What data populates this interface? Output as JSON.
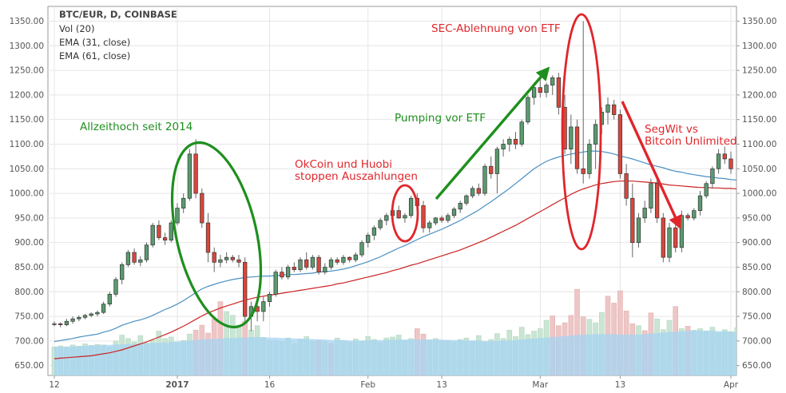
{
  "chart_data": {
    "type": "candlestick",
    "title": "BTC/EUR, D, COINBASE",
    "indicators": [
      "Vol (20)",
      "EMA (31, close)",
      "EMA (61, close)"
    ],
    "ylim": [
      630,
      1380
    ],
    "y_ticks": [
      650,
      700,
      750,
      800,
      850,
      900,
      950,
      1000,
      1050,
      1100,
      1150,
      1200,
      1250,
      1300,
      1350
    ],
    "y_tick_labels": [
      "650.00",
      "700.00",
      "750.00",
      "800.00",
      "850.00",
      "900.00",
      "950.00",
      "1000.00",
      "1050.00",
      "1100.00",
      "1150.00",
      "1200.00",
      "1250.00",
      "1300.00",
      "1350.00"
    ],
    "x_ticks": [
      {
        "day": 0,
        "label": "12"
      },
      {
        "day": 20,
        "label": "2017"
      },
      {
        "day": 35,
        "label": "16"
      },
      {
        "day": 51,
        "label": "Feb"
      },
      {
        "day": 63,
        "label": "13"
      },
      {
        "day": 79,
        "label": "Mar"
      },
      {
        "day": 92,
        "label": "13"
      },
      {
        "day": 110,
        "label": "Apr"
      }
    ],
    "candles": [
      [
        735,
        740,
        730,
        735
      ],
      [
        735,
        738,
        728,
        733
      ],
      [
        733,
        745,
        730,
        740
      ],
      [
        740,
        750,
        735,
        745
      ],
      [
        745,
        752,
        740,
        748
      ],
      [
        748,
        755,
        744,
        752
      ],
      [
        752,
        758,
        748,
        755
      ],
      [
        755,
        762,
        750,
        758
      ],
      [
        758,
        780,
        755,
        775
      ],
      [
        775,
        800,
        770,
        795
      ],
      [
        795,
        830,
        790,
        825
      ],
      [
        825,
        860,
        815,
        855
      ],
      [
        855,
        885,
        850,
        880
      ],
      [
        880,
        888,
        855,
        860
      ],
      [
        860,
        872,
        852,
        865
      ],
      [
        865,
        900,
        860,
        895
      ],
      [
        895,
        940,
        890,
        935
      ],
      [
        935,
        945,
        905,
        910
      ],
      [
        910,
        920,
        895,
        905
      ],
      [
        905,
        945,
        900,
        940
      ],
      [
        940,
        980,
        935,
        970
      ],
      [
        970,
        1000,
        960,
        990
      ],
      [
        990,
        1090,
        985,
        1080
      ],
      [
        1080,
        1110,
        990,
        1000
      ],
      [
        1000,
        1010,
        930,
        940
      ],
      [
        940,
        960,
        860,
        880
      ],
      [
        880,
        890,
        840,
        860
      ],
      [
        860,
        875,
        850,
        865
      ],
      [
        865,
        880,
        858,
        870
      ],
      [
        870,
        875,
        860,
        865
      ],
      [
        865,
        875,
        850,
        860
      ],
      [
        860,
        870,
        740,
        750
      ],
      [
        750,
        780,
        720,
        770
      ],
      [
        770,
        790,
        740,
        760
      ],
      [
        760,
        790,
        740,
        780
      ],
      [
        780,
        800,
        770,
        795
      ],
      [
        795,
        845,
        790,
        840
      ],
      [
        840,
        850,
        825,
        830
      ],
      [
        830,
        855,
        825,
        850
      ],
      [
        850,
        860,
        840,
        845
      ],
      [
        845,
        870,
        840,
        865
      ],
      [
        865,
        880,
        845,
        850
      ],
      [
        850,
        875,
        845,
        870
      ],
      [
        870,
        875,
        835,
        840
      ],
      [
        840,
        858,
        835,
        850
      ],
      [
        850,
        870,
        845,
        865
      ],
      [
        865,
        870,
        855,
        860
      ],
      [
        860,
        875,
        855,
        870
      ],
      [
        870,
        872,
        860,
        865
      ],
      [
        865,
        880,
        860,
        875
      ],
      [
        875,
        905,
        870,
        900
      ],
      [
        900,
        920,
        890,
        915
      ],
      [
        915,
        935,
        905,
        930
      ],
      [
        930,
        950,
        925,
        945
      ],
      [
        945,
        960,
        935,
        955
      ],
      [
        955,
        970,
        945,
        965
      ],
      [
        965,
        975,
        948,
        950
      ],
      [
        950,
        960,
        940,
        955
      ],
      [
        955,
        995,
        950,
        990
      ],
      [
        990,
        1000,
        970,
        975
      ],
      [
        975,
        985,
        920,
        930
      ],
      [
        930,
        945,
        920,
        940
      ],
      [
        940,
        952,
        935,
        950
      ],
      [
        950,
        955,
        940,
        945
      ],
      [
        945,
        960,
        940,
        955
      ],
      [
        955,
        972,
        950,
        968
      ],
      [
        968,
        985,
        960,
        980
      ],
      [
        980,
        998,
        975,
        995
      ],
      [
        995,
        1015,
        990,
        1010
      ],
      [
        1010,
        1020,
        995,
        1000
      ],
      [
        1000,
        1060,
        995,
        1055
      ],
      [
        1055,
        1075,
        1030,
        1040
      ],
      [
        1040,
        1095,
        1000,
        1090
      ],
      [
        1090,
        1110,
        1075,
        1100
      ],
      [
        1100,
        1115,
        1085,
        1110
      ],
      [
        1110,
        1125,
        1090,
        1100
      ],
      [
        1100,
        1150,
        1095,
        1145
      ],
      [
        1145,
        1200,
        1140,
        1195
      ],
      [
        1195,
        1225,
        1180,
        1215
      ],
      [
        1215,
        1235,
        1195,
        1205
      ],
      [
        1205,
        1225,
        1195,
        1220
      ],
      [
        1220,
        1240,
        1200,
        1235
      ],
      [
        1235,
        1245,
        1160,
        1175
      ],
      [
        1175,
        1200,
        1080,
        1090
      ],
      [
        1090,
        1160,
        1060,
        1135
      ],
      [
        1135,
        1150,
        1040,
        1050
      ],
      [
        1050,
        1350,
        1020,
        1040
      ],
      [
        1040,
        1110,
        1030,
        1100
      ],
      [
        1100,
        1150,
        1050,
        1140
      ],
      [
        1140,
        1175,
        1120,
        1165
      ],
      [
        1165,
        1195,
        1140,
        1180
      ],
      [
        1180,
        1190,
        1150,
        1160
      ],
      [
        1160,
        1170,
        1030,
        1040
      ],
      [
        1040,
        1060,
        975,
        990
      ],
      [
        990,
        1020,
        870,
        900
      ],
      [
        900,
        960,
        890,
        950
      ],
      [
        950,
        985,
        940,
        970
      ],
      [
        970,
        1030,
        960,
        1020
      ],
      [
        1020,
        1030,
        940,
        950
      ],
      [
        950,
        960,
        860,
        870
      ],
      [
        870,
        940,
        860,
        930
      ],
      [
        930,
        940,
        880,
        890
      ],
      [
        890,
        965,
        880,
        955
      ],
      [
        955,
        960,
        945,
        950
      ],
      [
        950,
        970,
        945,
        965
      ],
      [
        965,
        1005,
        955,
        995
      ],
      [
        995,
        1025,
        990,
        1020
      ],
      [
        1020,
        1055,
        1010,
        1050
      ],
      [
        1050,
        1090,
        1040,
        1080
      ],
      [
        1080,
        1095,
        1060,
        1070
      ],
      [
        1070,
        1085,
        1040,
        1050
      ]
    ],
    "ema_31": [
      699,
      701,
      703,
      705,
      708,
      710,
      712,
      714,
      718,
      721,
      726,
      732,
      736,
      740,
      743,
      747,
      752,
      758,
      764,
      769,
      775,
      782,
      790,
      798,
      806,
      811,
      815,
      819,
      822,
      825,
      827,
      829,
      830,
      831,
      832,
      832,
      833,
      834,
      835,
      835,
      836,
      837,
      838,
      840,
      841,
      842,
      844,
      846,
      849,
      853,
      857,
      861,
      866,
      871,
      877,
      883,
      889,
      894,
      900,
      906,
      912,
      917,
      922,
      927,
      933,
      939,
      945,
      952,
      959,
      966,
      975,
      983,
      992,
      1001,
      1010,
      1020,
      1030,
      1040,
      1050,
      1058,
      1065,
      1070,
      1074,
      1077,
      1080,
      1082,
      1084,
      1086,
      1086,
      1085,
      1083,
      1080,
      1076,
      1073,
      1070,
      1066,
      1062,
      1058,
      1055,
      1052,
      1048,
      1045,
      1043,
      1040,
      1038,
      1036,
      1034,
      1033,
      1031,
      1030,
      1028,
      1027,
      1026
    ],
    "ema_61": [
      664,
      665,
      666,
      667,
      668,
      669,
      670,
      672,
      674,
      676,
      679,
      682,
      686,
      690,
      694,
      698,
      703,
      708,
      713,
      718,
      724,
      730,
      737,
      744,
      751,
      757,
      762,
      767,
      771,
      775,
      779,
      783,
      786,
      789,
      791,
      793,
      795,
      797,
      799,
      801,
      803,
      805,
      807,
      809,
      811,
      813,
      816,
      818,
      821,
      824,
      827,
      830,
      833,
      836,
      839,
      843,
      846,
      850,
      854,
      857,
      861,
      865,
      869,
      873,
      877,
      881,
      885,
      890,
      895,
      900,
      905,
      911,
      917,
      923,
      929,
      935,
      942,
      949,
      956,
      963,
      970,
      977,
      984,
      991,
      998,
      1004,
      1009,
      1013,
      1017,
      1020,
      1022,
      1024,
      1025,
      1025,
      1025,
      1024,
      1023,
      1022,
      1021,
      1019,
      1017,
      1016,
      1015,
      1014,
      1013,
      1012,
      1012,
      1011,
      1011,
      1010,
      1010,
      1009,
      1009
    ],
    "volume_ma": [
      688,
      688,
      689,
      689,
      690,
      690,
      691,
      691,
      692,
      692,
      693,
      693,
      694,
      694,
      695,
      695,
      696,
      696,
      697,
      698,
      699,
      700,
      701,
      702,
      703,
      704,
      704,
      705,
      706,
      706,
      707,
      707,
      708,
      708,
      708,
      707,
      707,
      706,
      706,
      705,
      705,
      704,
      704,
      703,
      703,
      702,
      702,
      702,
      701,
      701,
      701,
      701,
      702,
      702,
      702,
      702,
      703,
      703,
      703,
      703,
      703,
      703,
      703,
      703,
      702,
      702,
      702,
      701,
      701,
      701,
      700,
      700,
      700,
      701,
      701,
      702,
      703,
      704,
      705,
      706,
      707,
      708,
      709,
      710,
      711,
      712,
      713,
      713,
      714,
      714,
      714,
      714,
      713,
      713,
      713,
      713,
      714,
      715,
      716,
      717,
      718,
      719,
      720,
      721,
      721,
      721,
      721,
      721,
      720,
      720,
      719,
      718,
      717
    ],
    "volume": [
      688,
      690,
      687,
      692,
      689,
      694,
      691,
      693,
      692,
      688,
      700,
      712,
      705,
      698,
      711,
      696,
      702,
      720,
      705,
      708,
      697,
      701,
      714,
      722,
      732,
      716,
      745,
      780,
      760,
      752,
      732,
      740,
      722,
      731,
      707,
      701,
      700,
      698,
      706,
      695,
      703,
      709,
      699,
      702,
      698,
      695,
      706,
      701,
      697,
      704,
      700,
      709,
      703,
      697,
      706,
      708,
      712,
      700,
      705,
      725,
      714,
      702,
      705,
      699,
      701,
      697,
      703,
      706,
      700,
      711,
      697,
      703,
      715,
      705,
      722,
      709,
      728,
      713,
      720,
      725,
      742,
      751,
      731,
      737,
      752,
      805,
      749,
      744,
      737,
      758,
      791,
      777,
      802,
      761,
      735,
      731,
      721,
      757,
      745,
      723,
      742,
      770,
      725,
      730,
      722,
      725,
      720,
      728,
      717,
      723,
      719,
      727,
      722
    ],
    "volume_down": [
      23,
      24,
      25,
      26,
      27,
      31,
      43,
      45,
      59,
      60,
      81,
      82,
      83,
      84,
      85,
      86,
      90,
      91,
      92,
      93,
      94,
      96,
      97,
      101,
      103
    ],
    "annotations": [
      "Allzeithoch seit 2014",
      "OkCoin und Huobi stoppen Auszahlungen",
      "Pumping vor ETF",
      "SEC-Ablehnung von ETF",
      "SegWit vs Bitcoin Unlimited"
    ]
  },
  "annotations": {
    "ath": "Allzeithoch seit 2014",
    "okcoin_line1": "OkCoin und Huobi",
    "okcoin_line2": "stoppen Auszahlungen",
    "pumping": "Pumping vor ETF",
    "sec": "SEC-Ablehnung von ETF",
    "segwit_line1": "SegWit vs",
    "segwit_line2": "Bitcoin Unlimited"
  },
  "colors": {
    "up_fill": "#5b9a6f",
    "down_fill": "#d9463c",
    "wick": "#666666",
    "ema_31": "#4a90c2",
    "ema_61": "#cc2222",
    "volume_area": "#a6d4f2",
    "volume_up": "#c9e5d3",
    "volume_down": "#eec6c6",
    "green_annotation": "#1e8f1e",
    "red_annotation": "#e0262b",
    "grid": "#e6e6e6"
  }
}
